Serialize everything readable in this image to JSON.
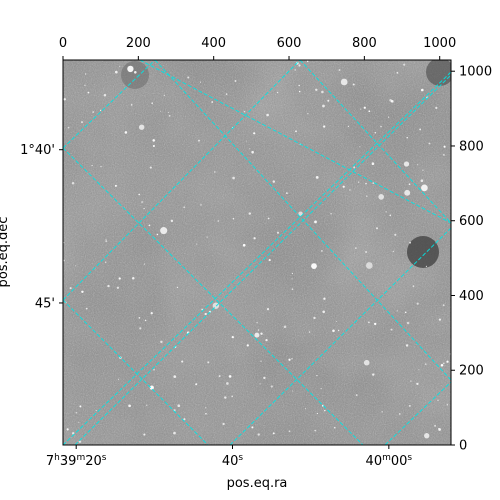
{
  "chart_data": {
    "type": "heatmap",
    "title": "",
    "xlabel": "pos.eq.ra",
    "ylabel": "pos.eq.dec",
    "pixel_axes": {
      "x_ticks": [
        0,
        200,
        400,
        600,
        800,
        1000
      ],
      "y_ticks": [
        0,
        200,
        400,
        600,
        800,
        1000
      ],
      "xlim": [
        0,
        1030
      ],
      "ylim": [
        0,
        1030
      ]
    },
    "ra_ticks": [
      {
        "label": "7h39m20s",
        "main": "7",
        "sup1": "h",
        "mid": "39",
        "sup2": "m",
        "tail": "20",
        "sup3": "s",
        "px": 35
      },
      {
        "label": "40s",
        "main": "",
        "sup1": "",
        "mid": "",
        "sup2": "",
        "tail": "40",
        "sup3": "s",
        "px": 450
      },
      {
        "label": "40m00s",
        "main": "",
        "sup1": "",
        "mid": "40",
        "sup2": "m",
        "tail": "00",
        "sup3": "s",
        "px": 865
      }
    ],
    "dec_ticks": [
      {
        "label": "1°40'",
        "px": 790
      },
      {
        "label": "45'",
        "px": 380
      }
    ],
    "grid": true,
    "grid_color": "#00e5e5",
    "image_cmap": "gray",
    "background_gray": "#8a8a8a"
  }
}
